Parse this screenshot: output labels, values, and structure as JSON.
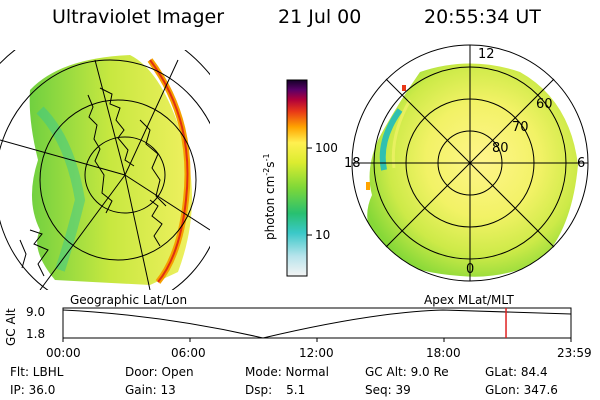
{
  "header": {
    "title": "Ultraviolet Imager",
    "date": "21 Jul 00",
    "time": "20:55:34 UT"
  },
  "left_image": {
    "label": "Geographic Lat/Lon"
  },
  "right_image": {
    "label": "Apex MLat/MLT",
    "mlt_labels": [
      "12",
      "18",
      "6",
      "0"
    ],
    "mlat_labels": [
      "60",
      "70",
      "80"
    ]
  },
  "colorbar": {
    "unit_label": "photon cm",
    "unit_sup1": "-2",
    "unit_mid": "s",
    "unit_sup2": "-1",
    "ticks": [
      "100",
      "10"
    ]
  },
  "altitude_plot": {
    "ylabel": "GC Alt",
    "yticks": [
      "9.0",
      "1.8"
    ],
    "xticks": [
      "00:00",
      "06:00",
      "12:00",
      "18:00",
      "23:59"
    ],
    "marker_time_hours": 20.93,
    "marker_color": "#e02020"
  },
  "info": {
    "flt": "Flt: LBHL",
    "ip": "IP: 36.0",
    "door": "Door: Open",
    "gain": "Gain: 13",
    "mode": "Mode: Normal",
    "dsp_label": "Dsp:",
    "dsp_value": "5.1",
    "gc_alt": "GC Alt: 9.0 Re",
    "seq": "Seq: 39",
    "glat": "GLat: 84.4",
    "glon": "GLon: 347.6"
  }
}
